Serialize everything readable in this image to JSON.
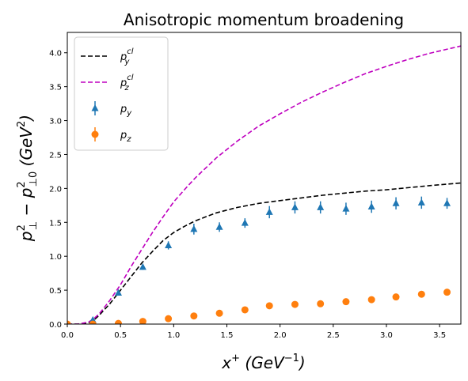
{
  "chart_data": {
    "type": "scatter",
    "title": "Anisotropic momentum broadening",
    "xlabel": "x⁺ (GeV⁻¹)",
    "ylabel": "p⊥² − p⊥0² (GeV²)",
    "xlim": [
      0,
      3.7
    ],
    "ylim": [
      0,
      4.3
    ],
    "x_ticks": [
      "0.0",
      "0.5",
      "1.0",
      "1.5",
      "2.0",
      "2.5",
      "3.0",
      "3.5"
    ],
    "y_ticks": [
      "0.0",
      "0.5",
      "1.0",
      "1.5",
      "2.0",
      "2.5",
      "3.0",
      "3.5",
      "4.0"
    ],
    "grid": false,
    "legend_position": "top-left",
    "series": [
      {
        "name": "p_y^cl",
        "label": {
          "base": "p",
          "sub": "y",
          "sup": "cl"
        },
        "kind": "line",
        "style": "dashed",
        "color": "#000000",
        "x": [
          0.0,
          0.1,
          0.2,
          0.25,
          0.3,
          0.4,
          0.5,
          0.6,
          0.7,
          0.8,
          0.9,
          1.0,
          1.1,
          1.2,
          1.3,
          1.4,
          1.5,
          1.6,
          1.7,
          1.8,
          1.9,
          2.0,
          2.2,
          2.4,
          2.6,
          2.8,
          3.0,
          3.2,
          3.4,
          3.7
        ],
        "y": [
          0.0,
          0.0,
          0.02,
          0.06,
          0.13,
          0.3,
          0.5,
          0.7,
          0.9,
          1.07,
          1.23,
          1.35,
          1.44,
          1.52,
          1.58,
          1.64,
          1.68,
          1.72,
          1.75,
          1.78,
          1.8,
          1.82,
          1.86,
          1.9,
          1.93,
          1.96,
          1.98,
          2.01,
          2.04,
          2.08
        ]
      },
      {
        "name": "p_z^cl",
        "label": {
          "base": "p",
          "sub": "z",
          "sup": "cl"
        },
        "kind": "line",
        "style": "dashed",
        "color": "#bf00bf",
        "x": [
          0.0,
          0.1,
          0.2,
          0.25,
          0.3,
          0.4,
          0.5,
          0.6,
          0.7,
          0.8,
          0.9,
          1.0,
          1.1,
          1.2,
          1.4,
          1.6,
          1.8,
          2.0,
          2.2,
          2.4,
          2.6,
          2.8,
          3.0,
          3.2,
          3.4,
          3.7
        ],
        "y": [
          0.0,
          0.0,
          0.03,
          0.08,
          0.15,
          0.35,
          0.58,
          0.85,
          1.1,
          1.35,
          1.58,
          1.8,
          1.98,
          2.15,
          2.45,
          2.7,
          2.92,
          3.1,
          3.27,
          3.42,
          3.56,
          3.69,
          3.8,
          3.9,
          3.99,
          4.1
        ]
      },
      {
        "name": "p_y",
        "label": {
          "base": "p",
          "sub": "y",
          "sup": ""
        },
        "kind": "errorbar",
        "marker": "triangle",
        "color": "#1f77b4",
        "x": [
          0.0,
          0.24,
          0.48,
          0.71,
          0.95,
          1.19,
          1.43,
          1.67,
          1.9,
          2.14,
          2.38,
          2.62,
          2.86,
          3.09,
          3.33,
          3.57
        ],
        "y": [
          0.0,
          0.06,
          0.46,
          0.84,
          1.16,
          1.4,
          1.43,
          1.49,
          1.65,
          1.72,
          1.72,
          1.7,
          1.73,
          1.78,
          1.79,
          1.78
        ],
        "yerr": [
          0.0,
          0.02,
          0.03,
          0.04,
          0.06,
          0.08,
          0.07,
          0.07,
          0.09,
          0.09,
          0.09,
          0.09,
          0.09,
          0.09,
          0.09,
          0.08
        ]
      },
      {
        "name": "p_z",
        "label": {
          "base": "p",
          "sub": "z",
          "sup": ""
        },
        "kind": "errorbar",
        "marker": "circle",
        "color": "#ff7f0e",
        "x": [
          0.0,
          0.24,
          0.48,
          0.71,
          0.95,
          1.19,
          1.43,
          1.67,
          1.9,
          2.14,
          2.38,
          2.62,
          2.86,
          3.09,
          3.33,
          3.57
        ],
        "y": [
          0.0,
          0.0,
          0.01,
          0.04,
          0.08,
          0.12,
          0.16,
          0.21,
          0.27,
          0.29,
          0.3,
          0.33,
          0.36,
          0.4,
          0.44,
          0.47
        ],
        "yerr": [
          0.0,
          0.0,
          0.01,
          0.01,
          0.02,
          0.02,
          0.02,
          0.03,
          0.03,
          0.03,
          0.03,
          0.03,
          0.03,
          0.03,
          0.03,
          0.03
        ]
      }
    ]
  }
}
